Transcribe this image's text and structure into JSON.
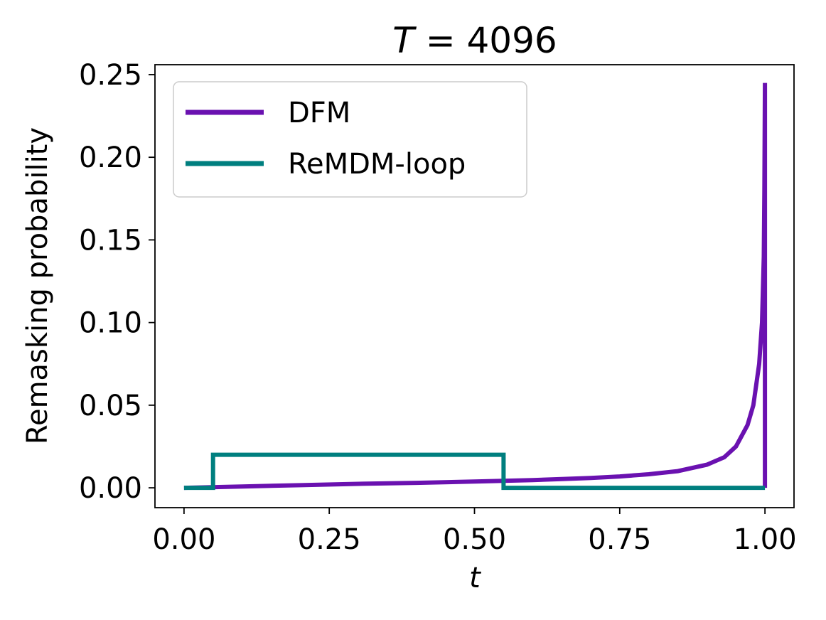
{
  "chart_data": {
    "type": "line",
    "title": {
      "italic": "T",
      "rest": " = 4096"
    },
    "xlabel": "t",
    "ylabel": "Remasking probability",
    "xlim": [
      -0.05,
      1.05
    ],
    "ylim": [
      -0.012,
      0.256
    ],
    "xticks": [
      0.0,
      0.25,
      0.5,
      0.75,
      1.0
    ],
    "xtick_labels": [
      "0.00",
      "0.25",
      "0.50",
      "0.75",
      "1.00"
    ],
    "yticks": [
      0.0,
      0.05,
      0.1,
      0.15,
      0.2,
      0.25
    ],
    "ytick_labels": [
      "0.00",
      "0.05",
      "0.10",
      "0.15",
      "0.20",
      "0.25"
    ],
    "grid": false,
    "legend_position": "top-left",
    "series": [
      {
        "name": "DFM",
        "color": "#6a11b0",
        "x": [
          0.0,
          0.1,
          0.2,
          0.3,
          0.4,
          0.5,
          0.55,
          0.6,
          0.65,
          0.7,
          0.75,
          0.8,
          0.85,
          0.9,
          0.93,
          0.95,
          0.97,
          0.98,
          0.99,
          0.995,
          0.998,
          0.999,
          1.0,
          1.0,
          1.0
        ],
        "y": [
          0.0,
          0.0008,
          0.0016,
          0.0024,
          0.003,
          0.0038,
          0.0042,
          0.0047,
          0.0053,
          0.006,
          0.0069,
          0.0082,
          0.0101,
          0.014,
          0.0185,
          0.025,
          0.038,
          0.05,
          0.075,
          0.1,
          0.14,
          0.18,
          0.245,
          0.0,
          0.0
        ]
      },
      {
        "name": "ReMDM-loop",
        "color": "#007f7f",
        "x": [
          0.0,
          0.05,
          0.05,
          0.55,
          0.55,
          1.0
        ],
        "y": [
          0.0,
          0.0,
          0.02,
          0.02,
          0.0,
          0.0
        ]
      }
    ]
  }
}
